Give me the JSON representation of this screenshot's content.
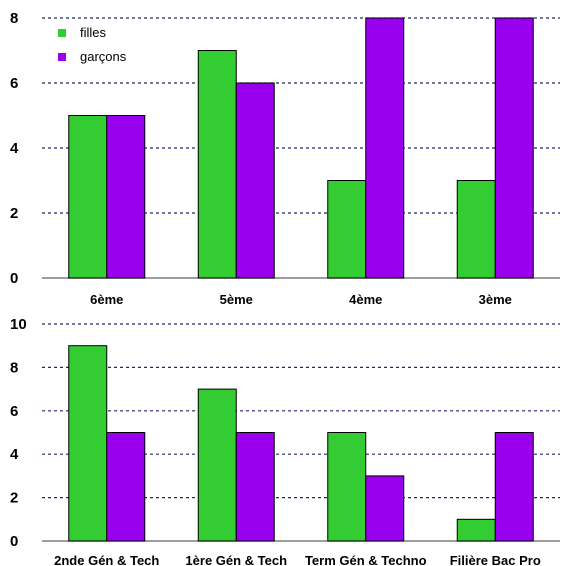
{
  "colors": {
    "filles": "#33cc33",
    "garcons": "#9900ee",
    "grid": "#1f2a6b"
  },
  "chart_data": [
    {
      "type": "bar",
      "categories": [
        "6ème",
        "5ème",
        "4ème",
        "3ème"
      ],
      "series": [
        {
          "name": "filles",
          "values": [
            5,
            7,
            3,
            3
          ]
        },
        {
          "name": "garçons",
          "values": [
            5,
            6,
            8,
            8
          ]
        }
      ],
      "ylim": [
        0,
        8
      ],
      "yticks": [
        "0",
        "2",
        "4",
        "6",
        "8"
      ],
      "grid": true,
      "legend": "top-left"
    },
    {
      "type": "bar",
      "categories": [
        "2nde Gén & Tech",
        "1ère Gén & Tech",
        "Term Gén & Techno",
        "Filière Bac Pro"
      ],
      "series": [
        {
          "values": [
            9,
            7,
            5,
            1
          ]
        },
        {
          "values": [
            5,
            5,
            3,
            5
          ]
        }
      ],
      "ylim": [
        0,
        10
      ],
      "yticks": [
        "0",
        "2",
        "4",
        "6",
        "8",
        "10"
      ],
      "grid": true
    }
  ]
}
